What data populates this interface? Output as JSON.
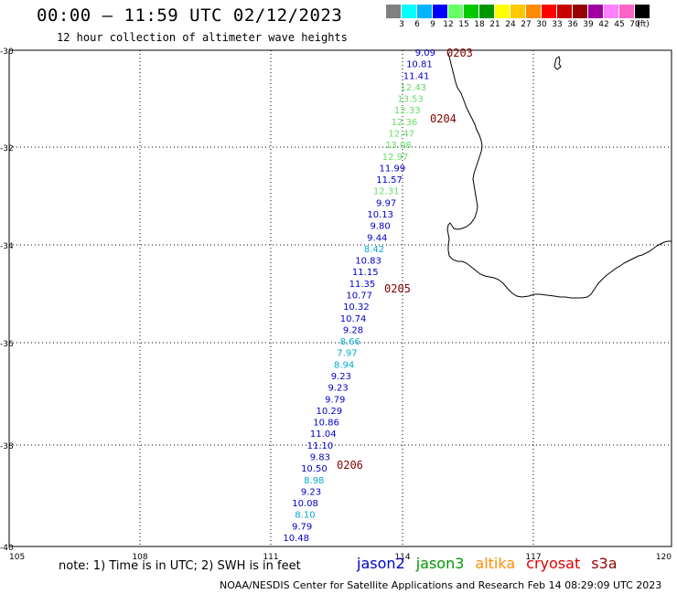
{
  "header": {
    "title": "00:00 – 11:59 UTC 02/12/2023",
    "subtitle": "12 hour collection of altimeter wave heights"
  },
  "legend": {
    "colors": [
      "#808080",
      "#00ffff",
      "#00b4ff",
      "#0000ff",
      "#66ff66",
      "#00c800",
      "#009600",
      "#ffff00",
      "#ffc800",
      "#ff8c00",
      "#ff0000",
      "#c80000",
      "#960000",
      "#a000a0",
      "#ff80ff",
      "#ff64c8",
      "#000000"
    ],
    "labels": [
      "3",
      "6",
      "9",
      "12",
      "15",
      "18",
      "21",
      "24",
      "27",
      "30",
      "33",
      "36",
      "39",
      "42",
      "45",
      "70",
      "(ft)"
    ]
  },
  "axes": {
    "lat_labels": [
      "-30",
      "-32",
      "-34",
      "-36",
      "-38",
      "-40"
    ],
    "lon_labels": [
      "105",
      "108",
      "111",
      "114",
      "117",
      "120"
    ]
  },
  "track": {
    "time_labels": [
      "0203",
      "0204",
      "0205",
      "0206"
    ],
    "points": [
      {
        "v": "9.09",
        "c": "#0000c8"
      },
      {
        "v": "10.81",
        "c": "#0000c8"
      },
      {
        "v": "11.41",
        "c": "#0000c8"
      },
      {
        "v": "12.43",
        "c": "#66dd66"
      },
      {
        "v": "13.53",
        "c": "#66dd66"
      },
      {
        "v": "12.33",
        "c": "#66dd66"
      },
      {
        "v": "12.36",
        "c": "#66dd66"
      },
      {
        "v": "12.47",
        "c": "#66dd66"
      },
      {
        "v": "13.08",
        "c": "#66dd66"
      },
      {
        "v": "12.97",
        "c": "#66dd66"
      },
      {
        "v": "11.99",
        "c": "#0000c8"
      },
      {
        "v": "11.57",
        "c": "#0000c8"
      },
      {
        "v": "12.31",
        "c": "#66dd66"
      },
      {
        "v": "9.97",
        "c": "#0000c8"
      },
      {
        "v": "10.13",
        "c": "#0000c8"
      },
      {
        "v": "9.80",
        "c": "#0000c8"
      },
      {
        "v": "9.44",
        "c": "#0000c8"
      },
      {
        "v": "8.42",
        "c": "#00aacc"
      },
      {
        "v": "10.83",
        "c": "#0000c8"
      },
      {
        "v": "11.15",
        "c": "#0000c8"
      },
      {
        "v": "11.35",
        "c": "#0000c8"
      },
      {
        "v": "10.77",
        "c": "#0000c8"
      },
      {
        "v": "10.32",
        "c": "#0000c8"
      },
      {
        "v": "10.74",
        "c": "#0000c8"
      },
      {
        "v": "9.28",
        "c": "#0000c8"
      },
      {
        "v": "8.66",
        "c": "#00aacc"
      },
      {
        "v": "7.97",
        "c": "#00aacc"
      },
      {
        "v": "8.94",
        "c": "#00aacc"
      },
      {
        "v": "9.23",
        "c": "#0000c8"
      },
      {
        "v": "9.23",
        "c": "#0000c8"
      },
      {
        "v": "9.79",
        "c": "#0000c8"
      },
      {
        "v": "10.29",
        "c": "#0000c8"
      },
      {
        "v": "10.86",
        "c": "#0000c8"
      },
      {
        "v": "11.04",
        "c": "#0000c8"
      },
      {
        "v": "11.10",
        "c": "#0000c8"
      },
      {
        "v": "9.83",
        "c": "#0000c8"
      },
      {
        "v": "10.50",
        "c": "#0000c8"
      },
      {
        "v": "8.98",
        "c": "#00aacc"
      },
      {
        "v": "9.23",
        "c": "#0000c8"
      },
      {
        "v": "10.08",
        "c": "#0000c8"
      },
      {
        "v": "8.10",
        "c": "#00aacc"
      },
      {
        "v": "9.79",
        "c": "#0000c8"
      },
      {
        "v": "10.48",
        "c": "#0000c8"
      }
    ]
  },
  "footer": {
    "note": "note: 1) Time is in UTC; 2) SWH is in feet",
    "satellites": [
      {
        "name": "jason2",
        "color": "#0000c8"
      },
      {
        "name": "jason3",
        "color": "#009600"
      },
      {
        "name": "altika",
        "color": "#ff8c00"
      },
      {
        "name": "cryosat",
        "color": "#e00000"
      },
      {
        "name": "s3a",
        "color": "#960000"
      }
    ],
    "credit": "NOAA/NESDIS Center for Satellite Applications and Research    Feb 14 08:29:09 UTC 2023"
  }
}
